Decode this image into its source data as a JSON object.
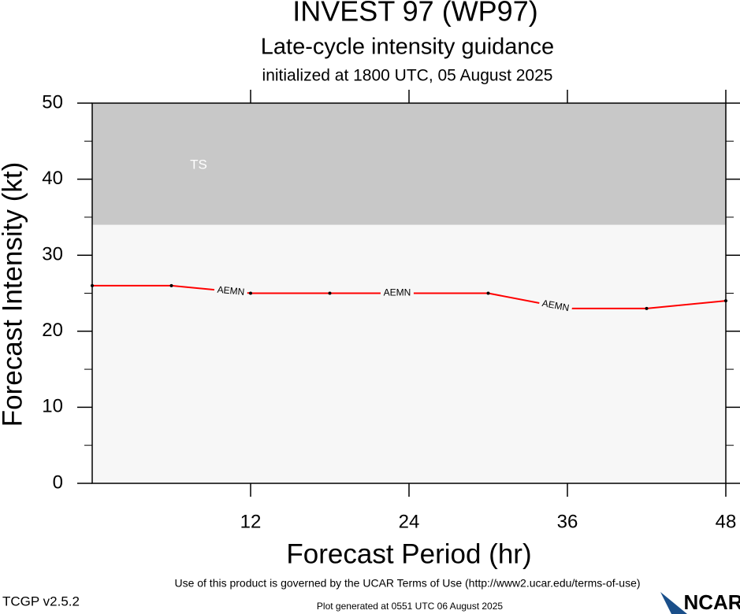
{
  "chart_data": {
    "type": "line",
    "title": "INVEST 97 (WP97)",
    "subtitle": "Late-cycle intensity guidance",
    "init_text": "initialized at 1800 UTC, 05 August 2025",
    "x_label": "Forecast Period (hr)",
    "y_label": "Forecast Intensity (kt)",
    "x": [
      0,
      6,
      12,
      18,
      24,
      30,
      36,
      42,
      48
    ],
    "series": [
      {
        "name": "AEMN",
        "color": "#ff0000",
        "values": [
          26,
          26,
          25,
          25,
          25,
          25,
          23,
          23,
          24
        ]
      }
    ],
    "bands": [
      {
        "label": "TS",
        "from": 34,
        "to": 50,
        "color": "#c8c8c8"
      }
    ],
    "xlim": [
      0,
      48
    ],
    "xticks": [
      12,
      24,
      36,
      48
    ],
    "ylim": [
      0,
      50
    ],
    "yticks": [
      0,
      10,
      20,
      30,
      40,
      50
    ],
    "yminorticks": [
      5,
      15,
      25,
      35,
      45
    ]
  },
  "footer": {
    "terms": "Use of this product is governed by the UCAR Terms of Use (http://www2.ucar.edu/terms-of-use)",
    "version": "TCGP v2.5.2",
    "generated": "Plot generated at 0551 UTC   06 August 2025",
    "logo": "NCAR"
  }
}
